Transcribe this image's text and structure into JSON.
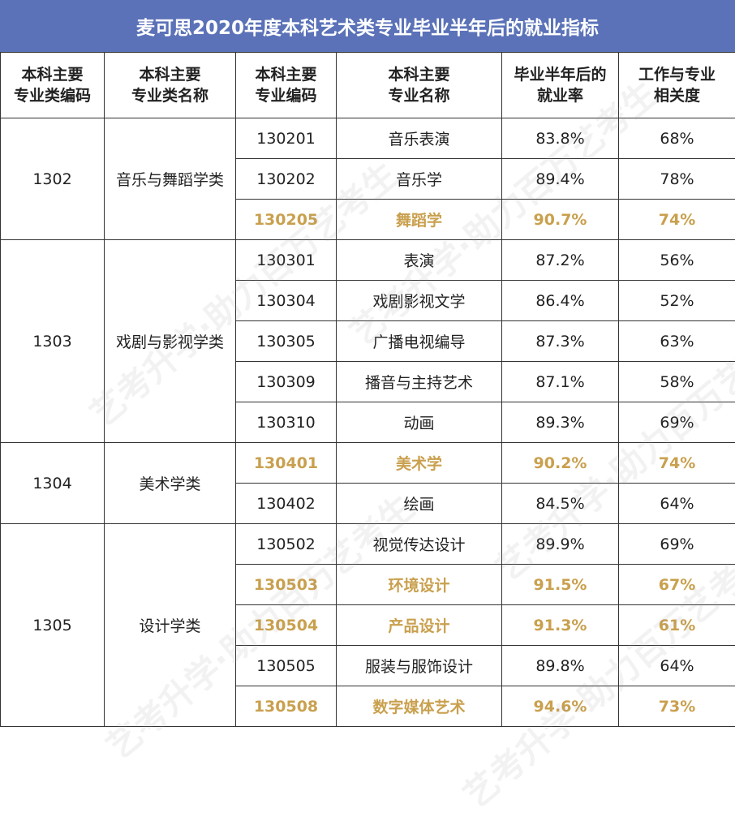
{
  "title": "麦可思2020年度本科艺术类专业毕业半年后的就业指标",
  "headers": [
    [
      "本科主要",
      "专业类编码"
    ],
    [
      "本科主要",
      "专业类名称"
    ],
    [
      "本科主要",
      "专业编码"
    ],
    [
      "本科主要",
      "专业名称"
    ],
    [
      "毕业半年后的",
      "就业率"
    ],
    [
      "工作与专业",
      "相关度"
    ]
  ],
  "groups": [
    {
      "code": "1302",
      "name": "音乐与舞蹈学类",
      "rows": [
        {
          "code": "130201",
          "name": "音乐表演",
          "rate": "83.8%",
          "rel": "68%",
          "highlight": false
        },
        {
          "code": "130202",
          "name": "音乐学",
          "rate": "89.4%",
          "rel": "78%",
          "highlight": false
        },
        {
          "code": "130205",
          "name": "舞蹈学",
          "rate": "90.7%",
          "rel": "74%",
          "highlight": true
        }
      ]
    },
    {
      "code": "1303",
      "name": "戏剧与影视学类",
      "rows": [
        {
          "code": "130301",
          "name": "表演",
          "rate": "87.2%",
          "rel": "56%",
          "highlight": false
        },
        {
          "code": "130304",
          "name": "戏剧影视文学",
          "rate": "86.4%",
          "rel": "52%",
          "highlight": false
        },
        {
          "code": "130305",
          "name": "广播电视编导",
          "rate": "87.3%",
          "rel": "63%",
          "highlight": false
        },
        {
          "code": "130309",
          "name": "播音与主持艺术",
          "rate": "87.1%",
          "rel": "58%",
          "highlight": false
        },
        {
          "code": "130310",
          "name": "动画",
          "rate": "89.3%",
          "rel": "69%",
          "highlight": false
        }
      ]
    },
    {
      "code": "1304",
      "name": "美术学类",
      "rows": [
        {
          "code": "130401",
          "name": "美术学",
          "rate": "90.2%",
          "rel": "74%",
          "highlight": true
        },
        {
          "code": "130402",
          "name": "绘画",
          "rate": "84.5%",
          "rel": "64%",
          "highlight": false
        }
      ]
    },
    {
      "code": "1305",
      "name": "设计学类",
      "rows": [
        {
          "code": "130502",
          "name": "视觉传达设计",
          "rate": "89.9%",
          "rel": "69%",
          "highlight": false
        },
        {
          "code": "130503",
          "name": "环境设计",
          "rate": "91.5%",
          "rel": "67%",
          "highlight": true
        },
        {
          "code": "130504",
          "name": "产品设计",
          "rate": "91.3%",
          "rel": "61%",
          "highlight": true
        },
        {
          "code": "130505",
          "name": "服装与服饰设计",
          "rate": "89.8%",
          "rel": "64%",
          "highlight": false
        },
        {
          "code": "130508",
          "name": "数字媒体艺术",
          "rate": "94.6%",
          "rel": "73%",
          "highlight": true
        }
      ]
    }
  ],
  "watermark": "艺考升学·助力百万艺考生",
  "colors": {
    "title_bg": "#5b72b8",
    "highlight": "#c9a04e"
  }
}
